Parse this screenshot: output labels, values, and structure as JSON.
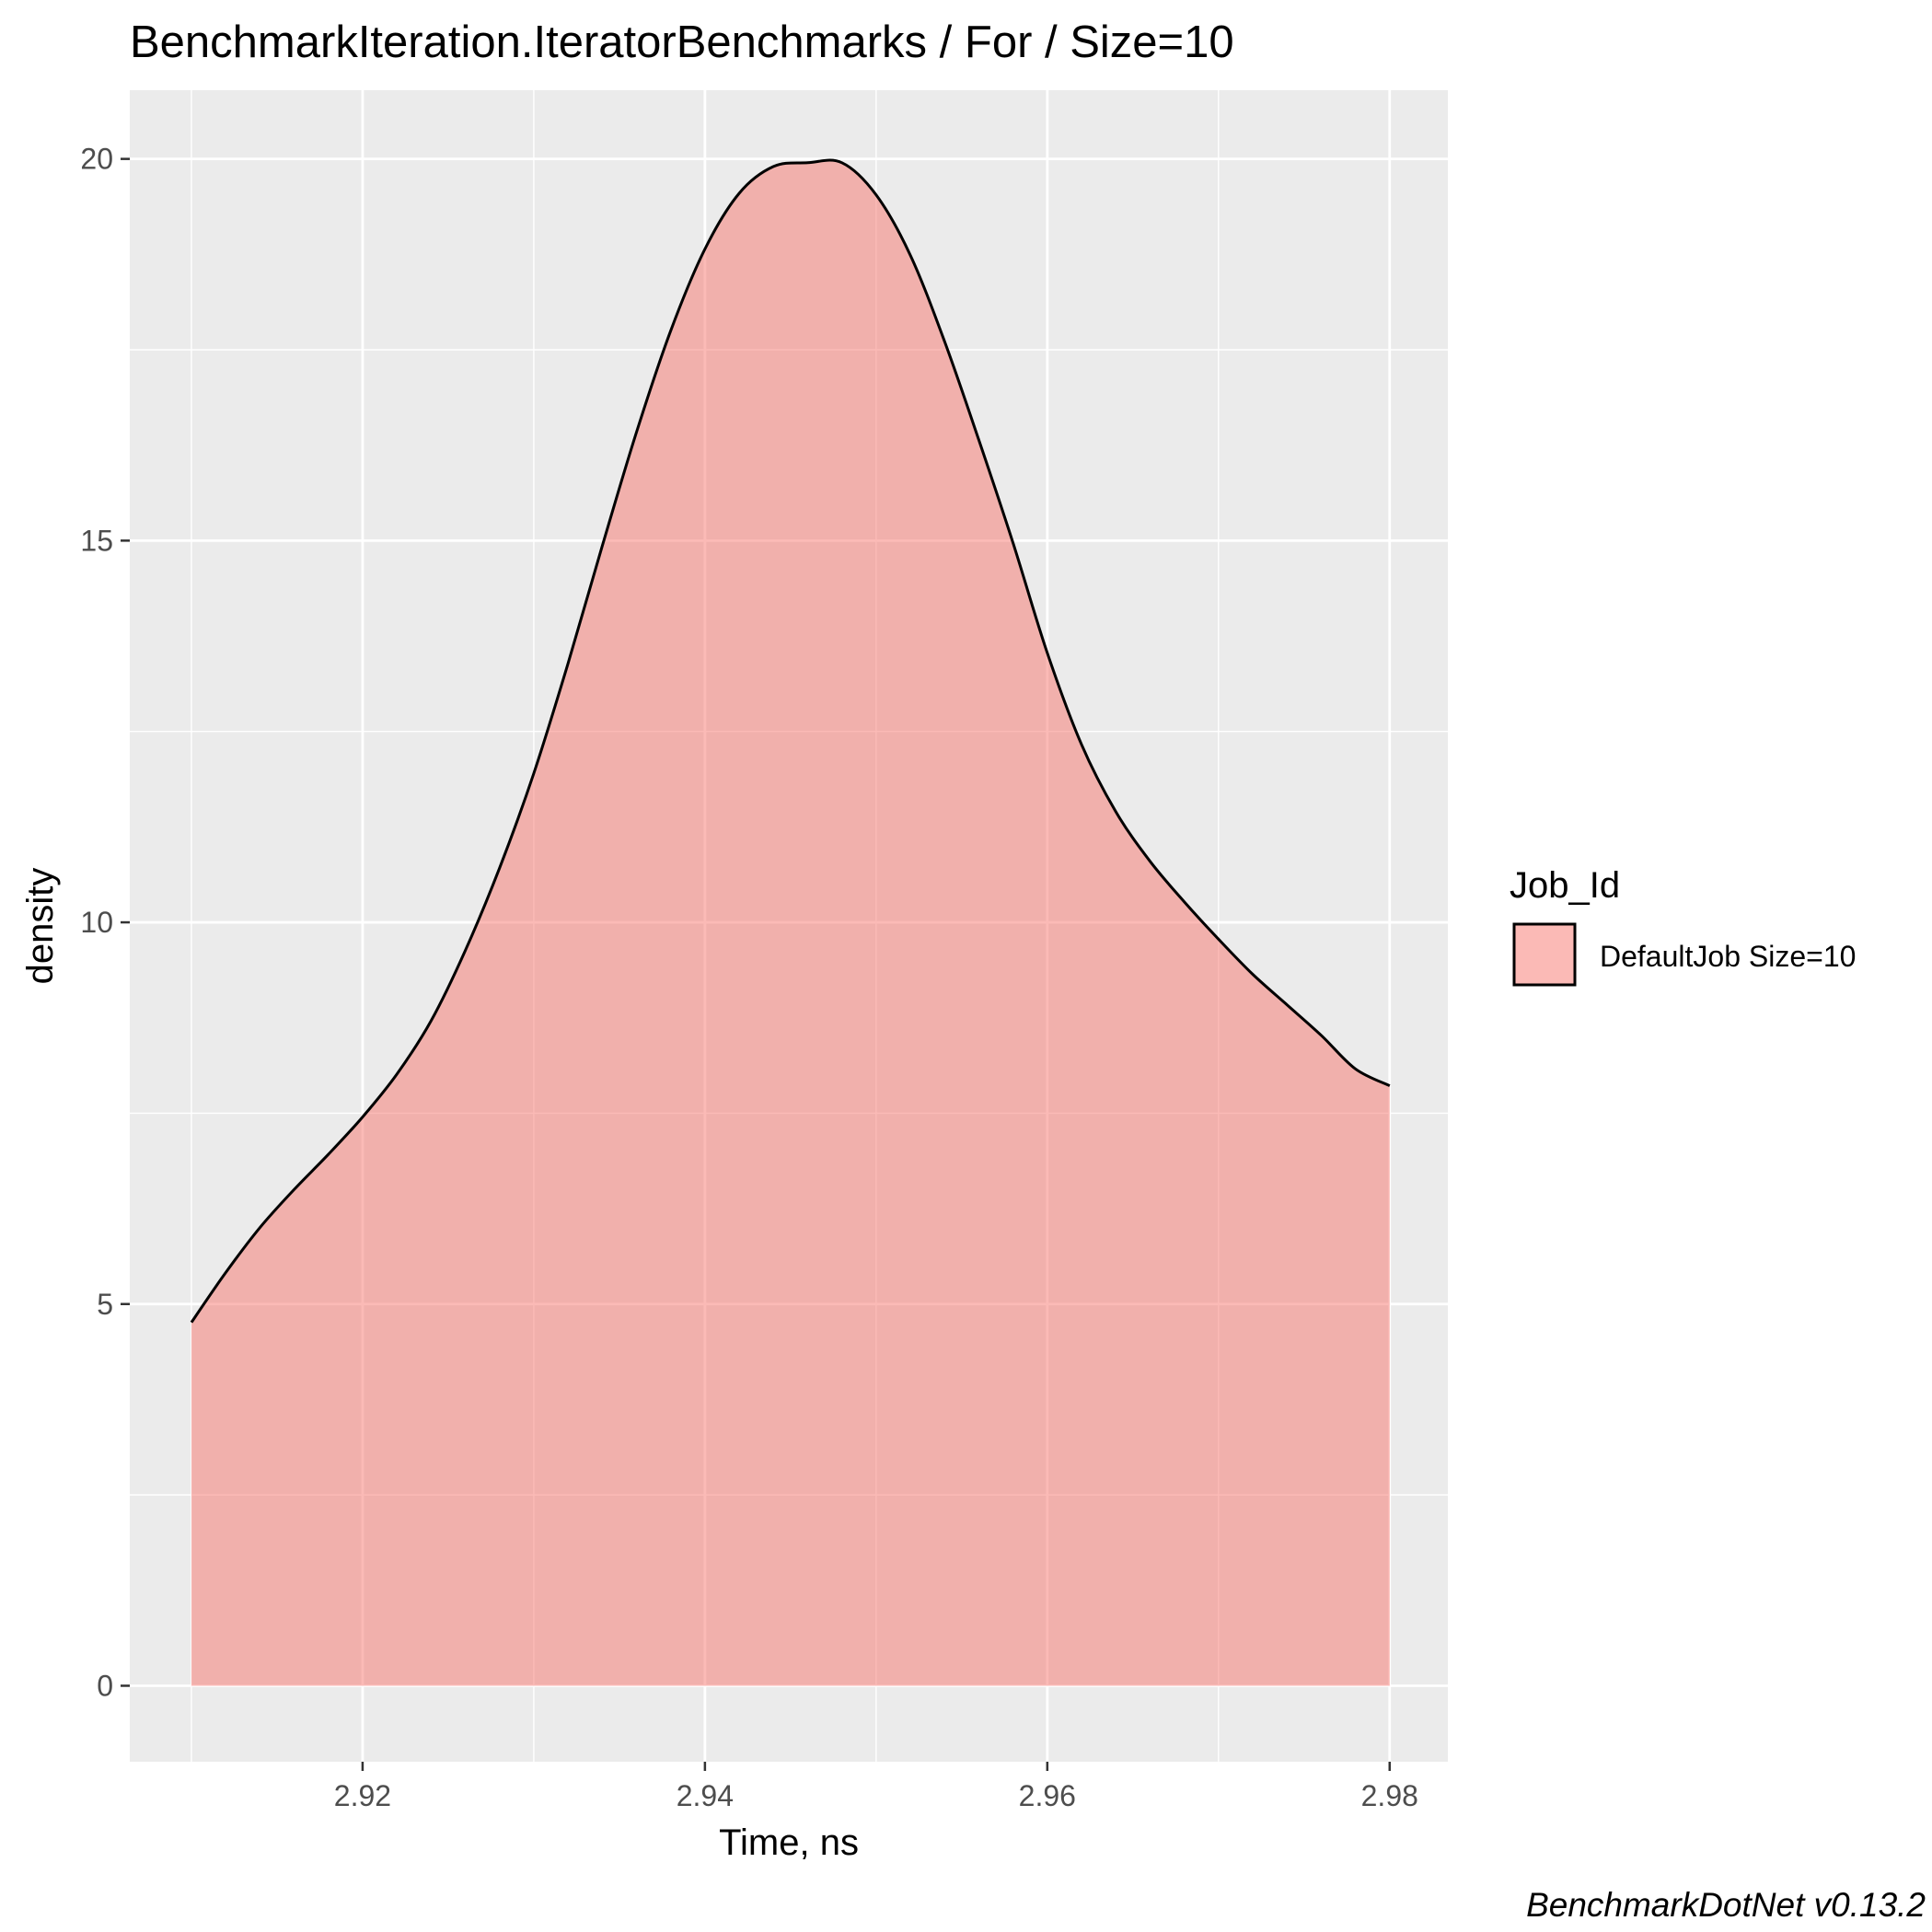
{
  "chart_data": {
    "type": "area",
    "title": "BenchmarkIteration.IteratorBenchmarks / For / Size=10",
    "xlabel": "Time, ns",
    "ylabel": "density",
    "xlim": [
      2.9064,
      2.9834
    ],
    "ylim": [
      -0.995,
      20.9
    ],
    "x_ticks": [
      2.92,
      2.94,
      2.96,
      2.98
    ],
    "x_tick_labels": [
      "2.92",
      "2.94",
      "2.96",
      "2.98"
    ],
    "y_ticks": [
      0,
      5,
      10,
      15,
      20
    ],
    "y_tick_labels": [
      "0",
      "5",
      "10",
      "15",
      "20"
    ],
    "grid": true,
    "legend": {
      "title": "Job_Id",
      "position": "right",
      "entries": [
        "DefaultJob Size=10"
      ]
    },
    "series": [
      {
        "name": "DefaultJob Size=10",
        "fill": "#F8766D",
        "fill_opacity": 0.5,
        "line_color": "#000000",
        "x": [
          2.91,
          2.912,
          2.914,
          2.916,
          2.918,
          2.92,
          2.922,
          2.924,
          2.926,
          2.928,
          2.93,
          2.932,
          2.934,
          2.936,
          2.938,
          2.94,
          2.942,
          2.944,
          2.946,
          2.948,
          2.95,
          2.952,
          2.954,
          2.956,
          2.958,
          2.96,
          2.962,
          2.964,
          2.966,
          2.968,
          2.97,
          2.972,
          2.974,
          2.976,
          2.978,
          2.98
        ],
        "y": [
          4.76,
          5.41,
          6.0,
          6.5,
          6.96,
          7.45,
          8.01,
          8.71,
          9.63,
          10.71,
          11.95,
          13.39,
          14.93,
          16.42,
          17.75,
          18.82,
          19.55,
          19.9,
          19.95,
          19.95,
          19.53,
          18.74,
          17.61,
          16.32,
          14.97,
          13.53,
          12.33,
          11.45,
          10.8,
          10.27,
          9.78,
          9.32,
          8.92,
          8.52,
          8.08,
          7.86
        ]
      }
    ],
    "caption": "BenchmarkDotNet v0.13.2"
  }
}
